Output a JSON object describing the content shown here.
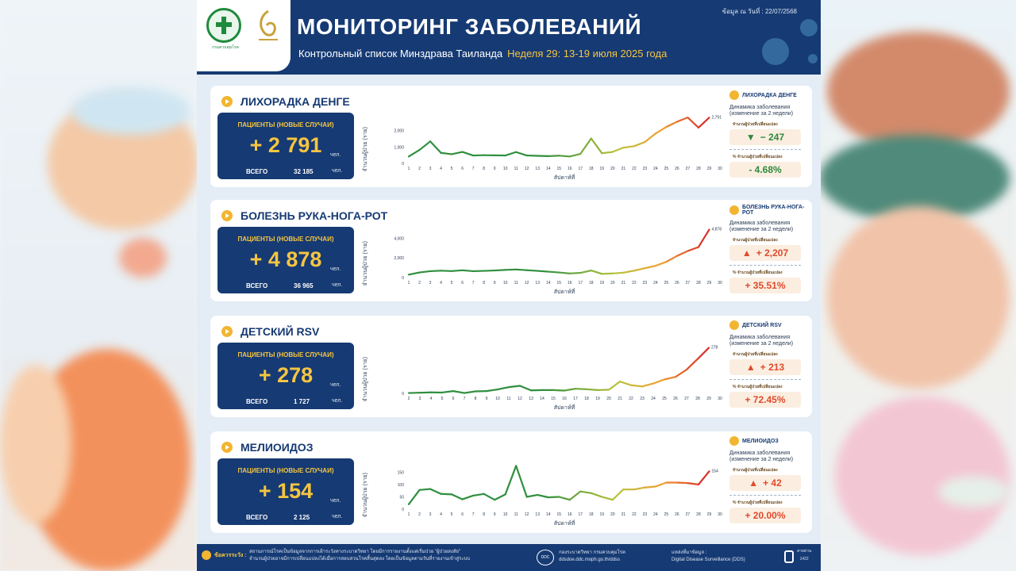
{
  "header": {
    "title": "МОНИТОРИНГ ЗАБОЛЕВАНИЙ",
    "subtitle": "Контрольный список Минздрава Таиланда",
    "week": "Неделя 29: 13-19 июля 2025 года",
    "date": "ข้อมูล ณ วันที่ : 22/07/2568",
    "logo_text": "กรมควบคุมโรค"
  },
  "common": {
    "patients_label": "ПАЦИЕНТЫ (НОВЫЕ СЛУЧАИ)",
    "unit": "чел.",
    "total_label": "ВСЕГО",
    "dynamics": "Динамика заболевания (изменение за 2 недели)",
    "change_count_label": "จำนวนผู้ป่วยที่เปลี่ยนแปลง",
    "change_pct_label": "% จำนวนผู้ป่วยที่เปลี่ยนแปลง",
    "x_axis_title": "สัปดาห์ที่",
    "y_axis_title": "จำนวนผู้ป่วย (ราย)"
  },
  "sections": [
    {
      "name": "ЛИХОРАДКА ДЕНГЕ",
      "value": "+ 2 791",
      "total": "32 185",
      "delta": "− 247",
      "delta_pct": "- 4.68%",
      "direction": "down",
      "delta_arrow": "▼",
      "end_label": "2,791",
      "y_ticks": [
        "2,000",
        "1,000",
        "0"
      ]
    },
    {
      "name": "БОЛЕЗНЬ РУКА-НОГА-РОТ",
      "value": "+ 4 878",
      "total": "36 965",
      "delta": "+ 2,207",
      "delta_pct": "+ 35.51%",
      "direction": "up",
      "delta_arrow": "▲",
      "end_label": "4,878",
      "y_ticks": [
        "4,000",
        "2,000",
        "0"
      ]
    },
    {
      "name": "ДЕТСКИЙ RSV",
      "value": "+ 278",
      "total": "1 727",
      "delta": "+ 213",
      "delta_pct": "+ 72.45%",
      "direction": "up",
      "delta_arrow": "▲",
      "end_label": "278",
      "y_ticks": [
        "0"
      ]
    },
    {
      "name": "МЕЛИОИДОЗ",
      "value": "+ 154",
      "total": "2 125",
      "delta": "+ 42",
      "delta_pct": "+ 20.00%",
      "direction": "up",
      "delta_arrow": "▲",
      "end_label": "154",
      "y_ticks": [
        "150",
        "100",
        "50",
        "0"
      ]
    }
  ],
  "chart_data": [
    {
      "type": "line",
      "title": "ЛИХОРАДКА ДЕНГЕ",
      "xlabel": "สัปดาห์ที่",
      "ylabel": "จำนวนผู้ป่วย (ราย)",
      "x": [
        1,
        2,
        3,
        4,
        5,
        6,
        7,
        8,
        9,
        10,
        11,
        12,
        13,
        14,
        15,
        16,
        17,
        18,
        19,
        20,
        21,
        22,
        23,
        24,
        25,
        26,
        27,
        28,
        29
      ],
      "x_ticks": [
        1,
        2,
        3,
        4,
        5,
        6,
        7,
        8,
        9,
        10,
        11,
        12,
        13,
        14,
        15,
        16,
        17,
        18,
        19,
        20,
        21,
        22,
        23,
        24,
        25,
        26,
        27,
        28,
        29,
        30
      ],
      "ylim": [
        0,
        3000
      ],
      "values": [
        420,
        820,
        1340,
        640,
        560,
        700,
        480,
        500,
        490,
        480,
        690,
        480,
        460,
        440,
        470,
        420,
        580,
        1520,
        620,
        700,
        960,
        1050,
        1300,
        1820,
        2220,
        2540,
        2800,
        2180,
        2791
      ]
    },
    {
      "type": "line",
      "title": "БОЛЕЗНЬ РУКА-НОГА-РОТ",
      "xlabel": "สัปดาห์ที่",
      "ylabel": "จำนวนผู้ป่วย (ราย)",
      "x": [
        1,
        2,
        3,
        4,
        5,
        6,
        7,
        8,
        9,
        10,
        11,
        12,
        13,
        14,
        15,
        16,
        17,
        18,
        19,
        20,
        21,
        22,
        23,
        24,
        25,
        26,
        27,
        28,
        29
      ],
      "x_ticks": [
        1,
        2,
        3,
        4,
        5,
        6,
        7,
        8,
        9,
        10,
        11,
        12,
        13,
        14,
        15,
        16,
        17,
        18,
        19,
        20,
        21,
        22,
        23,
        24,
        25,
        26,
        27,
        28,
        29,
        30
      ],
      "ylim": [
        0,
        5000
      ],
      "values": [
        300,
        520,
        650,
        700,
        660,
        740,
        650,
        680,
        720,
        780,
        820,
        750,
        680,
        600,
        520,
        420,
        480,
        720,
        380,
        420,
        500,
        700,
        950,
        1200,
        1600,
        2200,
        2700,
        3100,
        4878
      ]
    },
    {
      "type": "line",
      "title": "ДЕТСКИЙ RSV",
      "xlabel": "สัปดาห์ที่",
      "ylabel": "จำนวนผู้ป่วย (ราย)",
      "x": [
        2,
        3,
        4,
        5,
        6,
        7,
        8,
        9,
        10,
        11,
        12,
        13,
        14,
        15,
        16,
        17,
        18,
        19,
        20,
        21,
        22,
        23,
        24,
        25,
        26,
        27,
        28,
        29
      ],
      "x_ticks": [
        2,
        3,
        4,
        5,
        6,
        7,
        8,
        9,
        10,
        11,
        12,
        13,
        14,
        15,
        16,
        17,
        18,
        19,
        20,
        21,
        22,
        23,
        24,
        25,
        26,
        27,
        28,
        29,
        30
      ],
      "ylim": [
        0,
        300
      ],
      "values": [
        2,
        4,
        6,
        5,
        14,
        2,
        12,
        14,
        24,
        38,
        46,
        18,
        20,
        20,
        17,
        28,
        25,
        20,
        22,
        72,
        50,
        42,
        60,
        85,
        100,
        145,
        210,
        278
      ]
    },
    {
      "type": "line",
      "title": "МЕЛИОИДОЗ",
      "xlabel": "สัปดาห์ที่",
      "ylabel": "จำนวนผู้ป่วย (ราย)",
      "x": [
        1,
        2,
        3,
        4,
        5,
        6,
        7,
        8,
        9,
        10,
        11,
        12,
        13,
        14,
        15,
        16,
        17,
        18,
        19,
        20,
        21,
        22,
        23,
        24,
        25,
        26,
        27,
        28,
        29
      ],
      "x_ticks": [
        1,
        2,
        3,
        4,
        5,
        6,
        7,
        8,
        9,
        10,
        11,
        12,
        13,
        14,
        15,
        16,
        17,
        18,
        19,
        20,
        21,
        22,
        23,
        24,
        25,
        26,
        27,
        28,
        29,
        30
      ],
      "ylim": [
        0,
        200
      ],
      "values": [
        20,
        78,
        82,
        62,
        60,
        40,
        55,
        62,
        38,
        60,
        176,
        50,
        58,
        48,
        50,
        38,
        72,
        65,
        50,
        38,
        80,
        80,
        88,
        92,
        108,
        108,
        106,
        100,
        154
      ]
    }
  ],
  "footer": {
    "caution": "ข้อควรระวัง :",
    "text1": "สถานการณ์โรคเป็นข้อมูลจากการเฝ้าระวังทางระบาดวิทยา โดยมีการรายงานตั้งแต่เริ่มป่วย \"ผู้ป่วยสงสัย\"",
    "text2": "จำนวนผู้ป่วยอาจมีการเปลี่ยนแปลงได้เมื่อการสอบสวนโรคสิ้นสุดลง โดยเป็นข้อมูลตามวันที่รายงานเข้าสู่ระบบ",
    "ddc": "DDC",
    "dept1": "กองระบาดวิทยา กรมควบคุมโรค",
    "dept2": "ddsdoe.ddc.moph.go.th/ddss",
    "src1": "แหล่งที่มาข้อมูล :",
    "src2": "Digital Disease Surveillance (DDS)",
    "hotline1": "สายด่วน",
    "hotline2": "1422"
  }
}
